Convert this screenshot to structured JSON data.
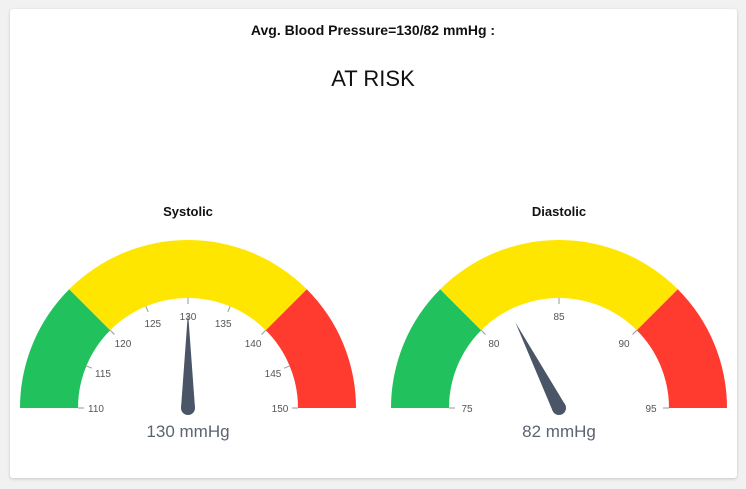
{
  "header": {
    "title": "Avg. Blood Pressure=130/82  mmHg :",
    "status": "AT RISK"
  },
  "colors": {
    "green": "#21c25e",
    "yellow": "#ffe600",
    "red": "#ff3b30",
    "needle": "#4b5568"
  },
  "chart_data": [
    {
      "type": "gauge",
      "title": "Systolic",
      "min": 110,
      "max": 150,
      "value": 130,
      "value_label": "130 mmHg",
      "ticks": [
        110,
        115,
        120,
        125,
        130,
        135,
        140,
        145,
        150
      ],
      "bands": [
        {
          "from": 110,
          "to": 120,
          "color": "green"
        },
        {
          "from": 120,
          "to": 140,
          "color": "yellow"
        },
        {
          "from": 140,
          "to": 150,
          "color": "red"
        }
      ]
    },
    {
      "type": "gauge",
      "title": "Diastolic",
      "min": 75,
      "max": 95,
      "value": 82,
      "value_label": "82 mmHg",
      "ticks": [
        75,
        80,
        85,
        90,
        95
      ],
      "bands": [
        {
          "from": 75,
          "to": 80,
          "color": "green"
        },
        {
          "from": 80,
          "to": 90,
          "color": "yellow"
        },
        {
          "from": 90,
          "to": 95,
          "color": "red"
        }
      ]
    }
  ]
}
